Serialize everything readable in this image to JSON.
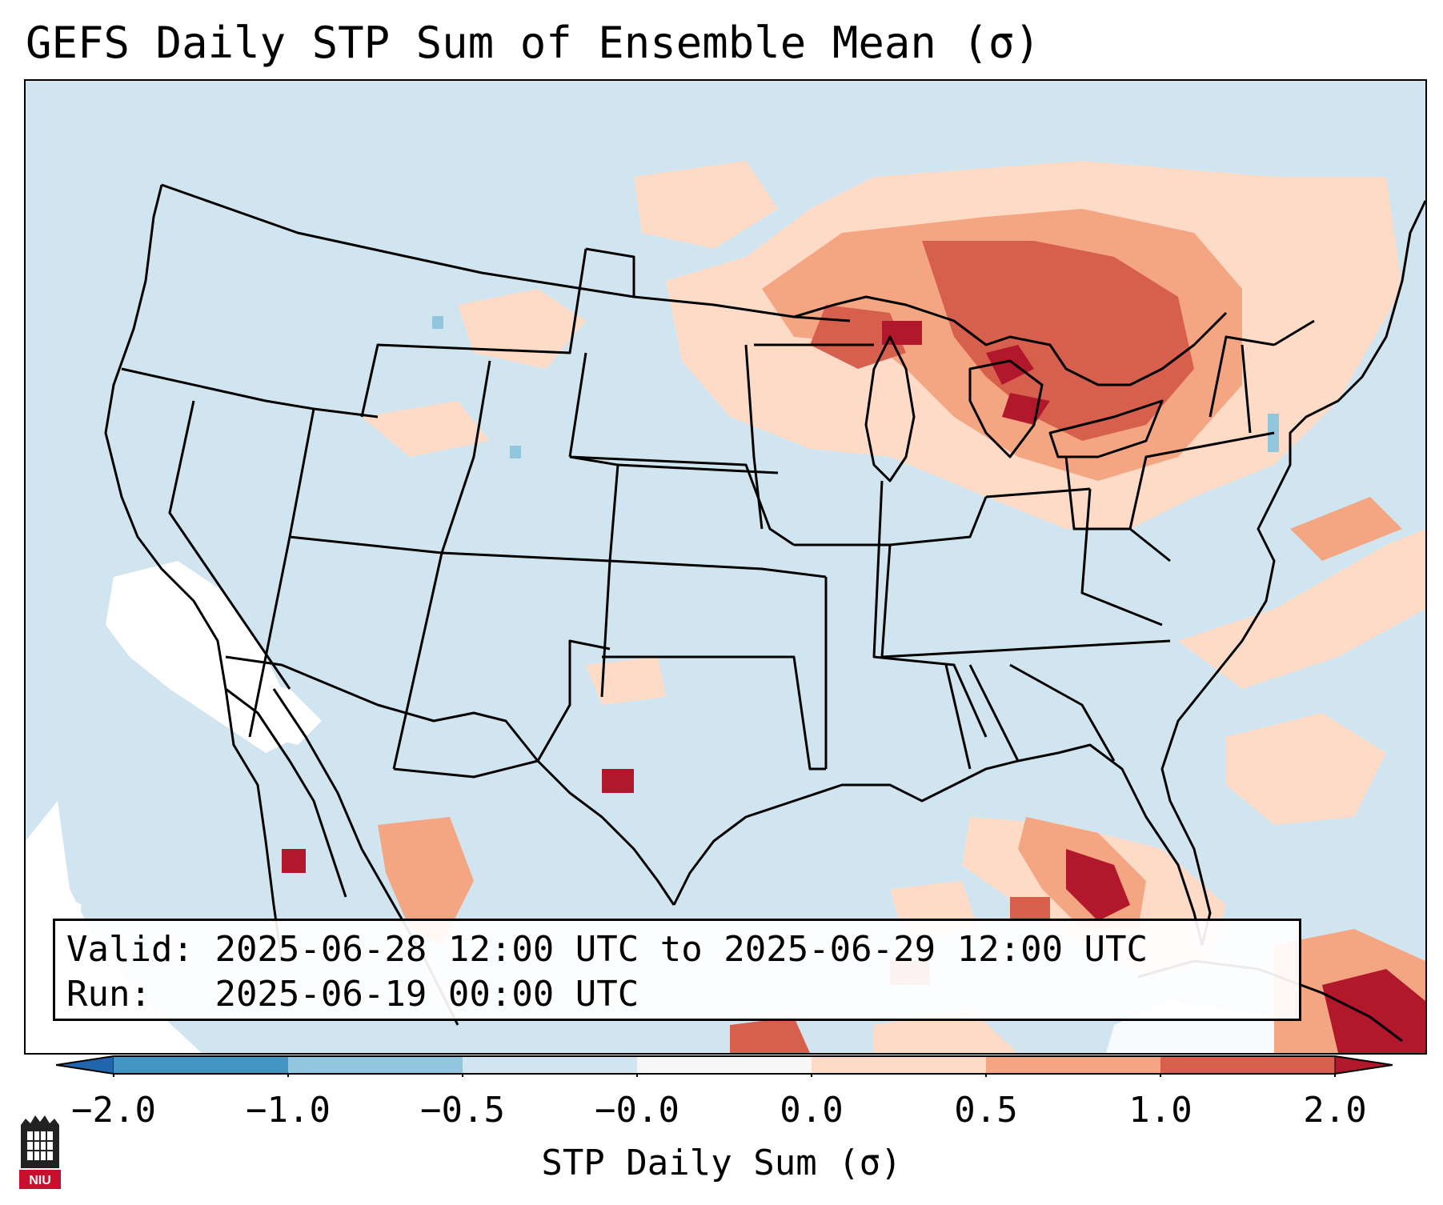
{
  "title": "GEFS Daily STP Sum of Ensemble Mean (σ)",
  "info": {
    "valid_label": "Valid:",
    "valid_value": "2025-06-28 12:00 UTC to 2025-06-29 12:00 UTC",
    "run_label": "Run:",
    "run_value": "2025-06-19 00:00 UTC"
  },
  "colorbar": {
    "label": "STP Daily Sum (σ)",
    "ticks": [
      "−2.0",
      "−1.0",
      "−0.5",
      "−0.0",
      "0.0",
      "0.5",
      "1.0",
      "2.0"
    ],
    "colors": [
      "#2166ac",
      "#4393c3",
      "#92c5de",
      "#d1e5f0",
      "#f7f7f7",
      "#fddbc7",
      "#f4a582",
      "#d6604d",
      "#b2182b"
    ]
  },
  "logo": {
    "text": "NIU"
  },
  "map": {
    "ocean_color": "#d1e5f0",
    "boundary_color": "#000000"
  }
}
